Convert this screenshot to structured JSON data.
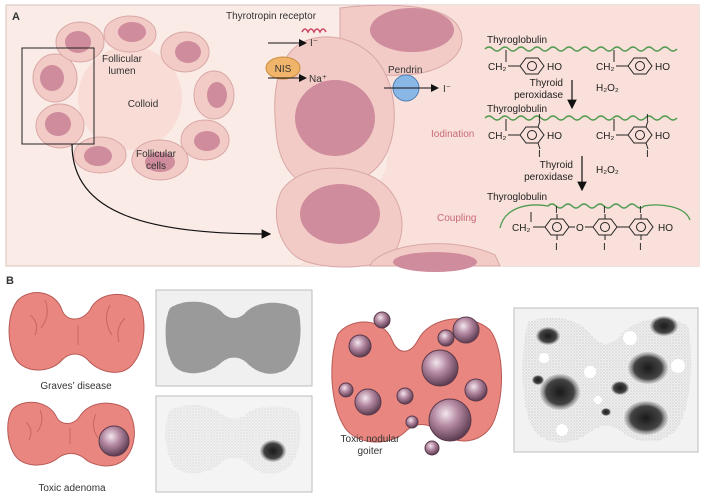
{
  "panel_a": {
    "letter": "A",
    "follicle": {
      "lumen_label_1": "Follicular",
      "lumen_label_2": "lumen",
      "colloid_label": "Colloid",
      "cells_label_1": "Follicular",
      "cells_label_2": "cells"
    },
    "transport": {
      "receptor_label": "Thyrotropin receptor",
      "iodide_in": "I⁻",
      "nis_label": "NIS",
      "sodium": "Na⁺",
      "pendrin_label": "Pendrin",
      "iodide_out": "I⁻"
    },
    "reactions": {
      "thyroglobulin_1": "Thyroglobulin",
      "thyroglobulin_2": "Thyroglobulin",
      "thyroglobulin_3": "Thyroglobulin",
      "ch2": "CH₂",
      "ho": "HO",
      "o": "O",
      "iodine_mark": "I",
      "enzyme_1a": "Thyroid",
      "enzyme_1b": "peroxidase",
      "enzyme_2a": "Thyroid",
      "enzyme_2b": "peroxidase",
      "h2o2_1": "H₂O₂",
      "h2o2_2": "H₂O₂",
      "iodination_label": "Iodination",
      "coupling_label": "Coupling"
    }
  },
  "panel_b": {
    "letter": "B",
    "graves_caption": "Graves’ disease",
    "adenoma_caption": "Toxic adenoma",
    "nodular_caption_1": "Toxic nodular",
    "nodular_caption_2": "goiter"
  },
  "colors": {
    "cell_fill": "#f6d4cf",
    "nucleus": "#cf8c9c",
    "thyroid_tissue": "#e8867f",
    "pendrin_blue": "#8ab8e6",
    "nis_orange": "#f0b56a",
    "pink_text": "#c96a7a",
    "green_chain": "#4f9a4f"
  }
}
